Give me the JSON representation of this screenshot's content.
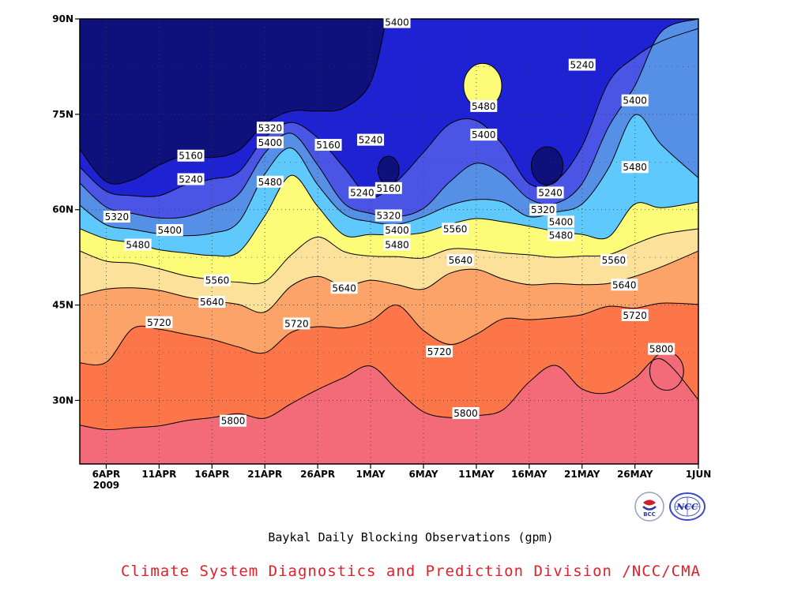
{
  "chart_data": {
    "type": "contour",
    "title": "Baykal Daily Blocking Observations (gpm)",
    "subtitle": "Climate System Diagnostics and Prediction Division /NCC/CMA",
    "x_ticks": [
      {
        "label": "6APR",
        "day": 5
      },
      {
        "label": "11APR",
        "day": 10
      },
      {
        "label": "16APR",
        "day": 15
      },
      {
        "label": "21APR",
        "day": 20
      },
      {
        "label": "26APR",
        "day": 25
      },
      {
        "label": "1MAY",
        "day": 30
      },
      {
        "label": "6MAY",
        "day": 35
      },
      {
        "label": "11MAY",
        "day": 40
      },
      {
        "label": "16MAY",
        "day": 45
      },
      {
        "label": "21MAY",
        "day": 50
      },
      {
        "label": "26MAY",
        "day": 55
      },
      {
        "label": "1JUN",
        "day": 61
      }
    ],
    "year_label": "2009",
    "xlim_days": [
      2.5,
      61
    ],
    "y_ticks": [
      {
        "label": "30N",
        "lat": 30
      },
      {
        "label": "45N",
        "lat": 45
      },
      {
        "label": "60N",
        "lat": 60
      },
      {
        "label": "75N",
        "lat": 75
      },
      {
        "label": "90N",
        "lat": 90
      }
    ],
    "ylim": [
      20,
      90
    ],
    "grid": true,
    "levels": [
      5160,
      5240,
      5320,
      5400,
      5480,
      5560,
      5640,
      5720,
      5800
    ],
    "fill_colors": [
      "#0e117c",
      "#1e22d2",
      "#4a55e6",
      "#5590e6",
      "#5fc8fc",
      "#fcfc78",
      "#fce19b",
      "#fca36a",
      "#fc7649",
      "#f36b78"
    ],
    "contours": [
      {
        "level": 5800,
        "points": [
          [
            2.5,
            26.1
          ],
          [
            5,
            25.4
          ],
          [
            7.5,
            25.7
          ],
          [
            10,
            26.0
          ],
          [
            12.5,
            26.8
          ],
          [
            15,
            27.3
          ],
          [
            17.5,
            27.9
          ],
          [
            20,
            27.2
          ],
          [
            22.5,
            29.5
          ],
          [
            25,
            31.7
          ],
          [
            27.5,
            33.6
          ],
          [
            30,
            35.4
          ],
          [
            32.5,
            31.7
          ],
          [
            35,
            28.2
          ],
          [
            37.5,
            27.3
          ],
          [
            40,
            27.6
          ],
          [
            42.5,
            28.5
          ],
          [
            45,
            32.9
          ],
          [
            47.5,
            35.5
          ],
          [
            50,
            31.8
          ],
          [
            52.5,
            31.2
          ],
          [
            55,
            33.5
          ],
          [
            57.5,
            36.5
          ],
          [
            61,
            30.1
          ]
        ]
      },
      {
        "level": 5720,
        "points": [
          [
            2.5,
            35.9
          ],
          [
            5,
            36.0
          ],
          [
            7.5,
            41.3
          ],
          [
            10,
            41.2
          ],
          [
            12.5,
            40.4
          ],
          [
            15,
            39.6
          ],
          [
            17.5,
            38.4
          ],
          [
            20,
            37.5
          ],
          [
            22.5,
            40.7
          ],
          [
            25,
            41.6
          ],
          [
            27.5,
            41.4
          ],
          [
            30,
            42.5
          ],
          [
            32.5,
            45.0
          ],
          [
            35,
            41.0
          ],
          [
            37.5,
            38.8
          ],
          [
            40,
            40.4
          ],
          [
            42.5,
            42.8
          ],
          [
            45,
            42.7
          ],
          [
            47.5,
            43.0
          ],
          [
            50,
            43.5
          ],
          [
            52.5,
            44.8
          ],
          [
            55,
            44.5
          ],
          [
            57.5,
            45.3
          ],
          [
            61,
            45.1
          ]
        ]
      },
      {
        "level": 5640,
        "points": [
          [
            2.5,
            46.5
          ],
          [
            5,
            47.5
          ],
          [
            7.5,
            47.7
          ],
          [
            10,
            47.3
          ],
          [
            12.5,
            46.3
          ],
          [
            15,
            45.6
          ],
          [
            17.5,
            45.1
          ],
          [
            20,
            43.9
          ],
          [
            22.5,
            48.0
          ],
          [
            25,
            49.5
          ],
          [
            27.5,
            48.0
          ],
          [
            30,
            48.9
          ],
          [
            32.5,
            48.2
          ],
          [
            35,
            47.5
          ],
          [
            37.5,
            50.0
          ],
          [
            40,
            50.6
          ],
          [
            42.5,
            49.1
          ],
          [
            45,
            48.2
          ],
          [
            47.5,
            48.4
          ],
          [
            50,
            48.2
          ],
          [
            52.5,
            48.4
          ],
          [
            55,
            49.5
          ],
          [
            57.5,
            51.0
          ],
          [
            61,
            53.5
          ]
        ]
      },
      {
        "level": 5560,
        "points": [
          [
            2.5,
            53.5
          ],
          [
            5,
            51.9
          ],
          [
            7.5,
            51.6
          ],
          [
            10,
            50.7
          ],
          [
            12.5,
            49.6
          ],
          [
            15,
            49.0
          ],
          [
            17.5,
            48.6
          ],
          [
            20,
            48.7
          ],
          [
            22.5,
            52.9
          ],
          [
            25,
            55.7
          ],
          [
            27.5,
            53.4
          ],
          [
            30,
            52.7
          ],
          [
            32.5,
            52.6
          ],
          [
            35,
            52.4
          ],
          [
            37.5,
            53.8
          ],
          [
            40,
            53.7
          ],
          [
            42.5,
            53.2
          ],
          [
            45,
            52.9
          ],
          [
            47.5,
            52.5
          ],
          [
            50,
            52.7
          ],
          [
            52.5,
            52.9
          ],
          [
            55,
            54.6
          ],
          [
            57.5,
            56.1
          ],
          [
            61,
            57.0
          ]
        ]
      },
      {
        "level": 5480,
        "points": [
          [
            2.5,
            57.0
          ],
          [
            5,
            55.4
          ],
          [
            7.5,
            54.8
          ],
          [
            10,
            53.7
          ],
          [
            12.5,
            53.2
          ],
          [
            15,
            52.8
          ],
          [
            17.5,
            53.3
          ],
          [
            20,
            59.0
          ],
          [
            22.5,
            65.4
          ],
          [
            25,
            60.5
          ],
          [
            27.5,
            56.0
          ],
          [
            30,
            56.1
          ],
          [
            32.5,
            56.0
          ],
          [
            35,
            56.4
          ],
          [
            37.5,
            57.7
          ],
          [
            40,
            58.6
          ],
          [
            42.5,
            58.1
          ],
          [
            45,
            57.4
          ],
          [
            47.5,
            56.6
          ],
          [
            50,
            56.1
          ],
          [
            52.5,
            55.7
          ],
          [
            55,
            60.9
          ],
          [
            57.5,
            60.3
          ],
          [
            61,
            61.2
          ]
        ]
      },
      {
        "level": 5400,
        "points": [
          [
            2.5,
            60.7
          ],
          [
            5,
            57.6
          ],
          [
            7.5,
            56.9
          ],
          [
            10,
            56.2
          ],
          [
            12.5,
            55.9
          ],
          [
            15,
            56.3
          ],
          [
            17.5,
            58.0
          ],
          [
            20,
            65.6
          ],
          [
            22.5,
            69.7
          ],
          [
            25,
            63.9
          ],
          [
            27.5,
            59.3
          ],
          [
            30,
            58.1
          ],
          [
            32.5,
            57.7
          ],
          [
            35,
            58.9
          ],
          [
            37.5,
            60.7
          ],
          [
            40,
            61.6
          ],
          [
            42.5,
            61.2
          ],
          [
            45,
            58.9
          ],
          [
            47.5,
            59.6
          ],
          [
            50,
            60.9
          ],
          [
            52.5,
            66.5
          ],
          [
            55,
            74.9
          ],
          [
            57.5,
            70.2
          ],
          [
            61,
            65.0
          ]
        ]
      },
      {
        "level": 5320,
        "points": [
          [
            2.5,
            64.2
          ],
          [
            5,
            60.4
          ],
          [
            7.5,
            59.4
          ],
          [
            10,
            58.7
          ],
          [
            12.5,
            58.9
          ],
          [
            15,
            60.3
          ],
          [
            17.5,
            62.4
          ],
          [
            20,
            68.9
          ],
          [
            22.5,
            72.0
          ],
          [
            25,
            67.0
          ],
          [
            27.5,
            61.0
          ],
          [
            30,
            59.4
          ],
          [
            32.5,
            58.9
          ],
          [
            35,
            60.2
          ],
          [
            37.5,
            64.4
          ],
          [
            40,
            67.3
          ],
          [
            42.5,
            65.6
          ],
          [
            45,
            61.7
          ],
          [
            47.5,
            61.0
          ],
          [
            50,
            64.1
          ],
          [
            52.5,
            73.0
          ],
          [
            55,
            79.5
          ],
          [
            57.5,
            88.0
          ],
          [
            61,
            90.0
          ]
        ]
      },
      {
        "level": 5240,
        "points": [
          [
            2.5,
            66.7
          ],
          [
            5,
            62.9
          ],
          [
            7.5,
            62.2
          ],
          [
            10,
            62.2
          ],
          [
            12.5,
            63.9
          ],
          [
            15,
            64.8
          ],
          [
            17.5,
            65.9
          ],
          [
            20,
            71.3
          ],
          [
            22.5,
            73.7
          ],
          [
            25,
            71.3
          ],
          [
            27.5,
            66.6
          ],
          [
            30,
            62.0
          ],
          [
            32.5,
            64.5
          ],
          [
            35,
            69.0
          ],
          [
            37.5,
            73.5
          ],
          [
            40,
            74.0
          ],
          [
            42.5,
            70.2
          ],
          [
            45,
            64.1
          ],
          [
            47.5,
            64.5
          ],
          [
            50,
            70.0
          ],
          [
            52.5,
            80.0
          ],
          [
            55,
            84.0
          ],
          [
            57.5,
            86.5
          ],
          [
            61,
            88.5
          ]
        ]
      },
      {
        "level": 5160,
        "points": [
          [
            2.5,
            69.5
          ],
          [
            5,
            64.4
          ],
          [
            7.5,
            64.7
          ],
          [
            10,
            67.0
          ],
          [
            12.5,
            68.5
          ],
          [
            15,
            68.2
          ],
          [
            17.5,
            69.3
          ],
          [
            20,
            73.5
          ],
          [
            22.5,
            75.5
          ],
          [
            25,
            75.5
          ],
          [
            27.5,
            76.0
          ],
          [
            30,
            80.0
          ],
          [
            31.5,
            90.0
          ]
        ]
      }
    ],
    "contour_labels": [
      {
        "text": "5400",
        "day": 32.5,
        "lat": 89.5
      },
      {
        "text": "5480",
        "day": 40.7,
        "lat": 76.3
      },
      {
        "text": "5400",
        "day": 40.7,
        "lat": 71.8
      },
      {
        "text": "5240",
        "day": 50.0,
        "lat": 82.8
      },
      {
        "text": "5400",
        "day": 55.0,
        "lat": 77.2
      },
      {
        "text": "5480",
        "day": 55.0,
        "lat": 66.7
      },
      {
        "text": "5160",
        "day": 13.0,
        "lat": 68.5
      },
      {
        "text": "5240",
        "day": 13.0,
        "lat": 64.8
      },
      {
        "text": "5320",
        "day": 20.5,
        "lat": 72.9
      },
      {
        "text": "5400",
        "day": 20.5,
        "lat": 70.6
      },
      {
        "text": "5480",
        "day": 20.5,
        "lat": 64.4
      },
      {
        "text": "5160",
        "day": 26.0,
        "lat": 70.2
      },
      {
        "text": "5240",
        "day": 30.0,
        "lat": 71.0
      },
      {
        "text": "5240",
        "day": 29.2,
        "lat": 62.7
      },
      {
        "text": "5160",
        "day": 31.7,
        "lat": 63.4
      },
      {
        "text": "5240",
        "day": 47.0,
        "lat": 62.7
      },
      {
        "text": "5320",
        "day": 46.3,
        "lat": 60.0
      },
      {
        "text": "5400",
        "day": 48.0,
        "lat": 58.1
      },
      {
        "text": "5480",
        "day": 48.0,
        "lat": 56.0
      },
      {
        "text": "5320",
        "day": 6.0,
        "lat": 58.9
      },
      {
        "text": "5400",
        "day": 11.0,
        "lat": 56.8
      },
      {
        "text": "5480",
        "day": 8.0,
        "lat": 54.5
      },
      {
        "text": "5320",
        "day": 31.7,
        "lat": 59.1
      },
      {
        "text": "5400",
        "day": 32.5,
        "lat": 56.8
      },
      {
        "text": "5480",
        "day": 32.5,
        "lat": 54.5
      },
      {
        "text": "5560",
        "day": 38.0,
        "lat": 57.0
      },
      {
        "text": "5560",
        "day": 15.5,
        "lat": 48.9
      },
      {
        "text": "5560",
        "day": 53.0,
        "lat": 52.1
      },
      {
        "text": "5640",
        "day": 38.5,
        "lat": 52.1
      },
      {
        "text": "5640",
        "day": 15.0,
        "lat": 45.5
      },
      {
        "text": "5640",
        "day": 27.5,
        "lat": 47.7
      },
      {
        "text": "5640",
        "day": 54.0,
        "lat": 48.2
      },
      {
        "text": "5720",
        "day": 10.0,
        "lat": 42.3
      },
      {
        "text": "5720",
        "day": 23.0,
        "lat": 42.1
      },
      {
        "text": "5720",
        "day": 36.5,
        "lat": 37.7
      },
      {
        "text": "5720",
        "day": 55.0,
        "lat": 43.4
      },
      {
        "text": "5800",
        "day": 17.0,
        "lat": 26.8
      },
      {
        "text": "5800",
        "day": 39.0,
        "lat": 28.0
      },
      {
        "text": "5800",
        "day": 57.5,
        "lat": 38.1
      }
    ],
    "blobs": [
      {
        "level": 5480,
        "fill": "#fcfc78",
        "center": [
          40.6,
          79.5
        ],
        "radius": [
          1.8,
          3.5
        ]
      },
      {
        "level": 5160,
        "fill": "#0e117c",
        "center": [
          31.7,
          66.2
        ],
        "radius": [
          1.0,
          2.2
        ]
      },
      {
        "level": 5160,
        "fill": "#0e117c",
        "center": [
          46.7,
          66.9
        ],
        "radius": [
          1.5,
          3.0
        ]
      },
      {
        "level": 5800,
        "fill": "#f36b78",
        "center": [
          58.0,
          34.6
        ],
        "radius": [
          1.6,
          3.0
        ]
      }
    ]
  },
  "logos": {
    "bcc_text": "BCC",
    "ncc_text": "NCC"
  }
}
